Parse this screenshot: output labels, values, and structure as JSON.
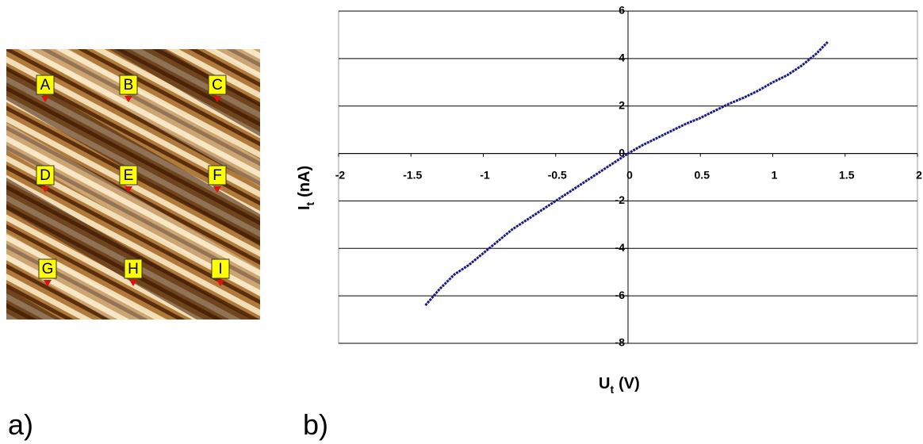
{
  "panel_labels": [
    "a)",
    "b)"
  ],
  "image": {
    "markers": [
      "A",
      "B",
      "C",
      "D",
      "E",
      "F",
      "G",
      "H",
      "I"
    ]
  },
  "chart_data": {
    "type": "line",
    "xlabel": "U",
    "xlabel_subscript": "t",
    "xlabel_unit": "(V)",
    "ylabel": "I",
    "ylabel_subscript": "t",
    "ylabel_unit": "(nA)",
    "x": [
      -1.4,
      -1.3,
      -1.2,
      -1.1,
      -1.0,
      -0.9,
      -0.8,
      -0.7,
      -0.6,
      -0.5,
      -0.4,
      -0.3,
      -0.2,
      -0.1,
      0,
      0.1,
      0.2,
      0.3,
      0.4,
      0.5,
      0.6,
      0.7,
      0.8,
      0.9,
      1.0,
      1.1,
      1.2,
      1.3,
      1.38
    ],
    "values": [
      -6.4,
      -5.7,
      -5.1,
      -4.7,
      -4.2,
      -3.7,
      -3.2,
      -2.8,
      -2.4,
      -2.0,
      -1.6,
      -1.2,
      -0.8,
      -0.4,
      0,
      0.35,
      0.65,
      0.95,
      1.25,
      1.5,
      1.8,
      2.1,
      2.35,
      2.65,
      3.0,
      3.3,
      3.7,
      4.2,
      4.7
    ],
    "color": "#1a1a80",
    "xlim": [
      -2,
      2
    ],
    "xticks": [
      -2,
      -1.5,
      -1,
      -0.5,
      0,
      0.5,
      1,
      1.5,
      2
    ],
    "ylim": [
      -8,
      6
    ],
    "yticks": [
      -8,
      -6,
      -4,
      -2,
      0,
      2,
      4,
      6
    ],
    "grid": true
  }
}
